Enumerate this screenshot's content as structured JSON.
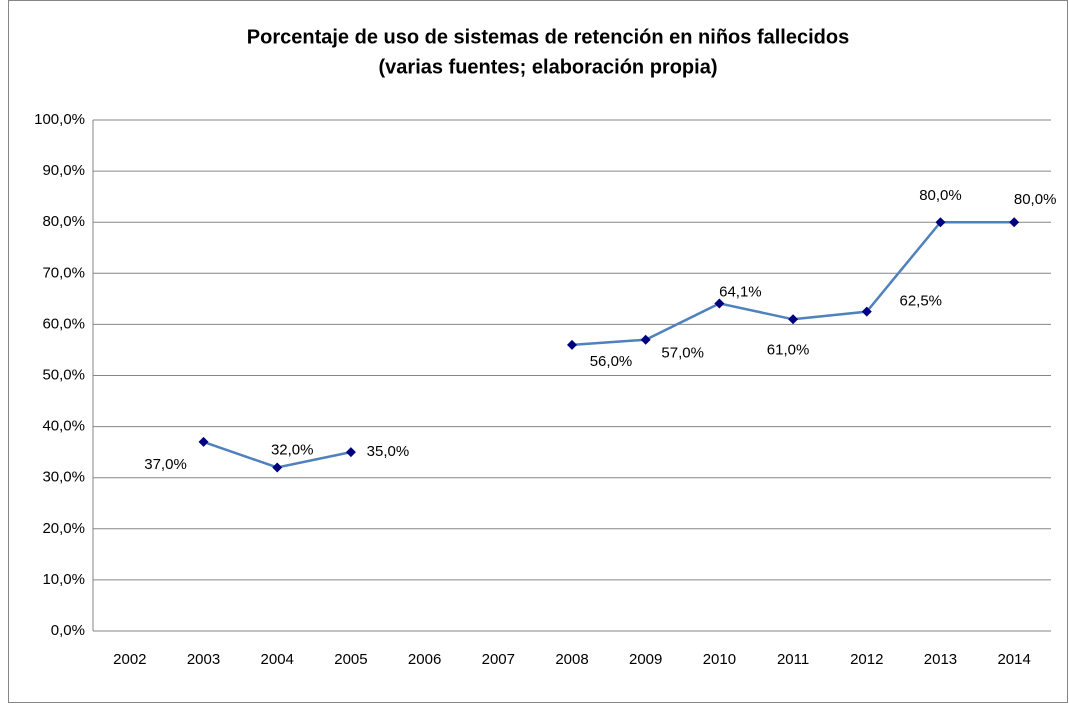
{
  "chart_data": {
    "type": "line",
    "title": "Porcentaje de uso de sistemas de retención en niños fallecidos",
    "subtitle": "(varias fuentes; elaboración propia)",
    "categories": [
      "2002",
      "2003",
      "2004",
      "2005",
      "2006",
      "2007",
      "2008",
      "2009",
      "2010",
      "2011",
      "2012",
      "2013",
      "2014"
    ],
    "values": [
      null,
      37,
      32,
      35,
      null,
      null,
      56,
      57,
      64.1,
      61,
      62.5,
      80,
      80
    ],
    "value_labels": [
      null,
      "37,0%",
      "32,0%",
      "35,0%",
      null,
      null,
      "56,0%",
      "57,0%",
      "64,1%",
      "61,0%",
      "62,5%",
      "80,0%",
      "80,0%"
    ],
    "color": "#4f81bd",
    "marker_color": "#000080",
    "ylim": [
      0,
      100
    ],
    "yticks": [
      {
        "value": 0,
        "label": "0,0%"
      },
      {
        "value": 10,
        "label": "10,0%"
      },
      {
        "value": 20,
        "label": "20,0%"
      },
      {
        "value": 30,
        "label": "30,0%"
      },
      {
        "value": 40,
        "label": "40,0%"
      },
      {
        "value": 50,
        "label": "50,0%"
      },
      {
        "value": 60,
        "label": "60,0%"
      },
      {
        "value": 70,
        "label": "70,0%"
      },
      {
        "value": 80,
        "label": "80,0%"
      },
      {
        "value": 90,
        "label": "90,0%"
      },
      {
        "value": 100,
        "label": "100,0%"
      }
    ],
    "grid": true
  }
}
